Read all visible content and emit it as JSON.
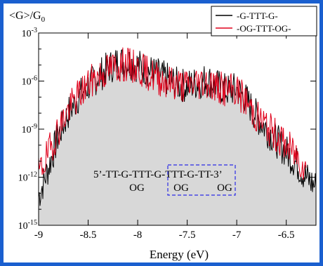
{
  "colors": {
    "frame": "#1a5fcf",
    "series_a": "#000000",
    "series_b": "#e0001b",
    "fill": "#d8d8d8",
    "box": "#2a2ae6"
  },
  "chart_data": {
    "type": "line",
    "title": "",
    "ylabel": "<G>/G",
    "ylabel_sub": "0",
    "xlabel": "Energy (eV)",
    "xlim": [
      -9.0,
      -6.2
    ],
    "ylim_exponent": [
      -15,
      -3
    ],
    "y_scale": "log",
    "grid": false,
    "legend_position": "top-right",
    "x_ticks": [
      {
        "value": -9.0,
        "label": "-9"
      },
      {
        "value": -8.5,
        "label": "-8.5"
      },
      {
        "value": -8.0,
        "label": "-8"
      },
      {
        "value": -7.5,
        "label": "-7.5"
      },
      {
        "value": -7.0,
        "label": "-7"
      },
      {
        "value": -6.5,
        "label": "-6.5"
      }
    ],
    "y_ticks": [
      {
        "exp": -3,
        "base": "10",
        "power": "-3"
      },
      {
        "exp": -6,
        "base": "10",
        "power": "-6"
      },
      {
        "exp": -9,
        "base": "10",
        "power": "-9"
      },
      {
        "exp": -12,
        "base": "10",
        "power": "-12"
      },
      {
        "exp": -15,
        "base": "10",
        "power": "-15"
      }
    ],
    "series": [
      {
        "name": "-G-TTT-G-",
        "x": [
          -9.0,
          -8.9,
          -8.8,
          -8.7,
          -8.6,
          -8.5,
          -8.4,
          -8.3,
          -8.2,
          -8.1,
          -8.0,
          -7.9,
          -7.8,
          -7.7,
          -7.6,
          -7.5,
          -7.4,
          -7.3,
          -7.2,
          -7.1,
          -7.0,
          -6.9,
          -6.8,
          -6.7,
          -6.6,
          -6.5,
          -6.4,
          -6.3,
          -6.2
        ],
        "log10_y": [
          -13.2,
          -11.4,
          -9.4,
          -8.0,
          -7.0,
          -6.3,
          -5.7,
          -5.2,
          -4.8,
          -4.8,
          -5.0,
          -5.3,
          -5.6,
          -5.9,
          -6.2,
          -6.3,
          -6.1,
          -5.9,
          -6.3,
          -6.6,
          -6.5,
          -7.2,
          -8.2,
          -9.0,
          -9.7,
          -10.4,
          -11.1,
          -12.0,
          -12.6
        ]
      },
      {
        "name": "-OG-TTT-OG-",
        "x": [
          -9.0,
          -8.9,
          -8.8,
          -8.7,
          -8.6,
          -8.5,
          -8.4,
          -8.3,
          -8.2,
          -8.1,
          -8.0,
          -7.9,
          -7.8,
          -7.7,
          -7.6,
          -7.5,
          -7.4,
          -7.3,
          -7.2,
          -7.1,
          -7.0,
          -6.9,
          -6.8,
          -6.7,
          -6.6,
          -6.5,
          -6.4,
          -6.3
        ],
        "log10_y": [
          -11.8,
          -10.5,
          -9.0,
          -7.8,
          -6.9,
          -6.2,
          -5.7,
          -5.3,
          -5.0,
          -5.0,
          -5.2,
          -5.5,
          -5.8,
          -6.0,
          -6.2,
          -6.3,
          -6.1,
          -6.0,
          -6.4,
          -6.6,
          -6.6,
          -7.3,
          -8.2,
          -8.8,
          -9.4,
          -10.0,
          -10.6,
          -11.4
        ]
      }
    ],
    "annotations": {
      "sequence": "5’-TT-G-TTT-G-TTT-G-TT-3’",
      "og_labels": [
        "OG",
        "OG",
        "OG"
      ]
    }
  }
}
